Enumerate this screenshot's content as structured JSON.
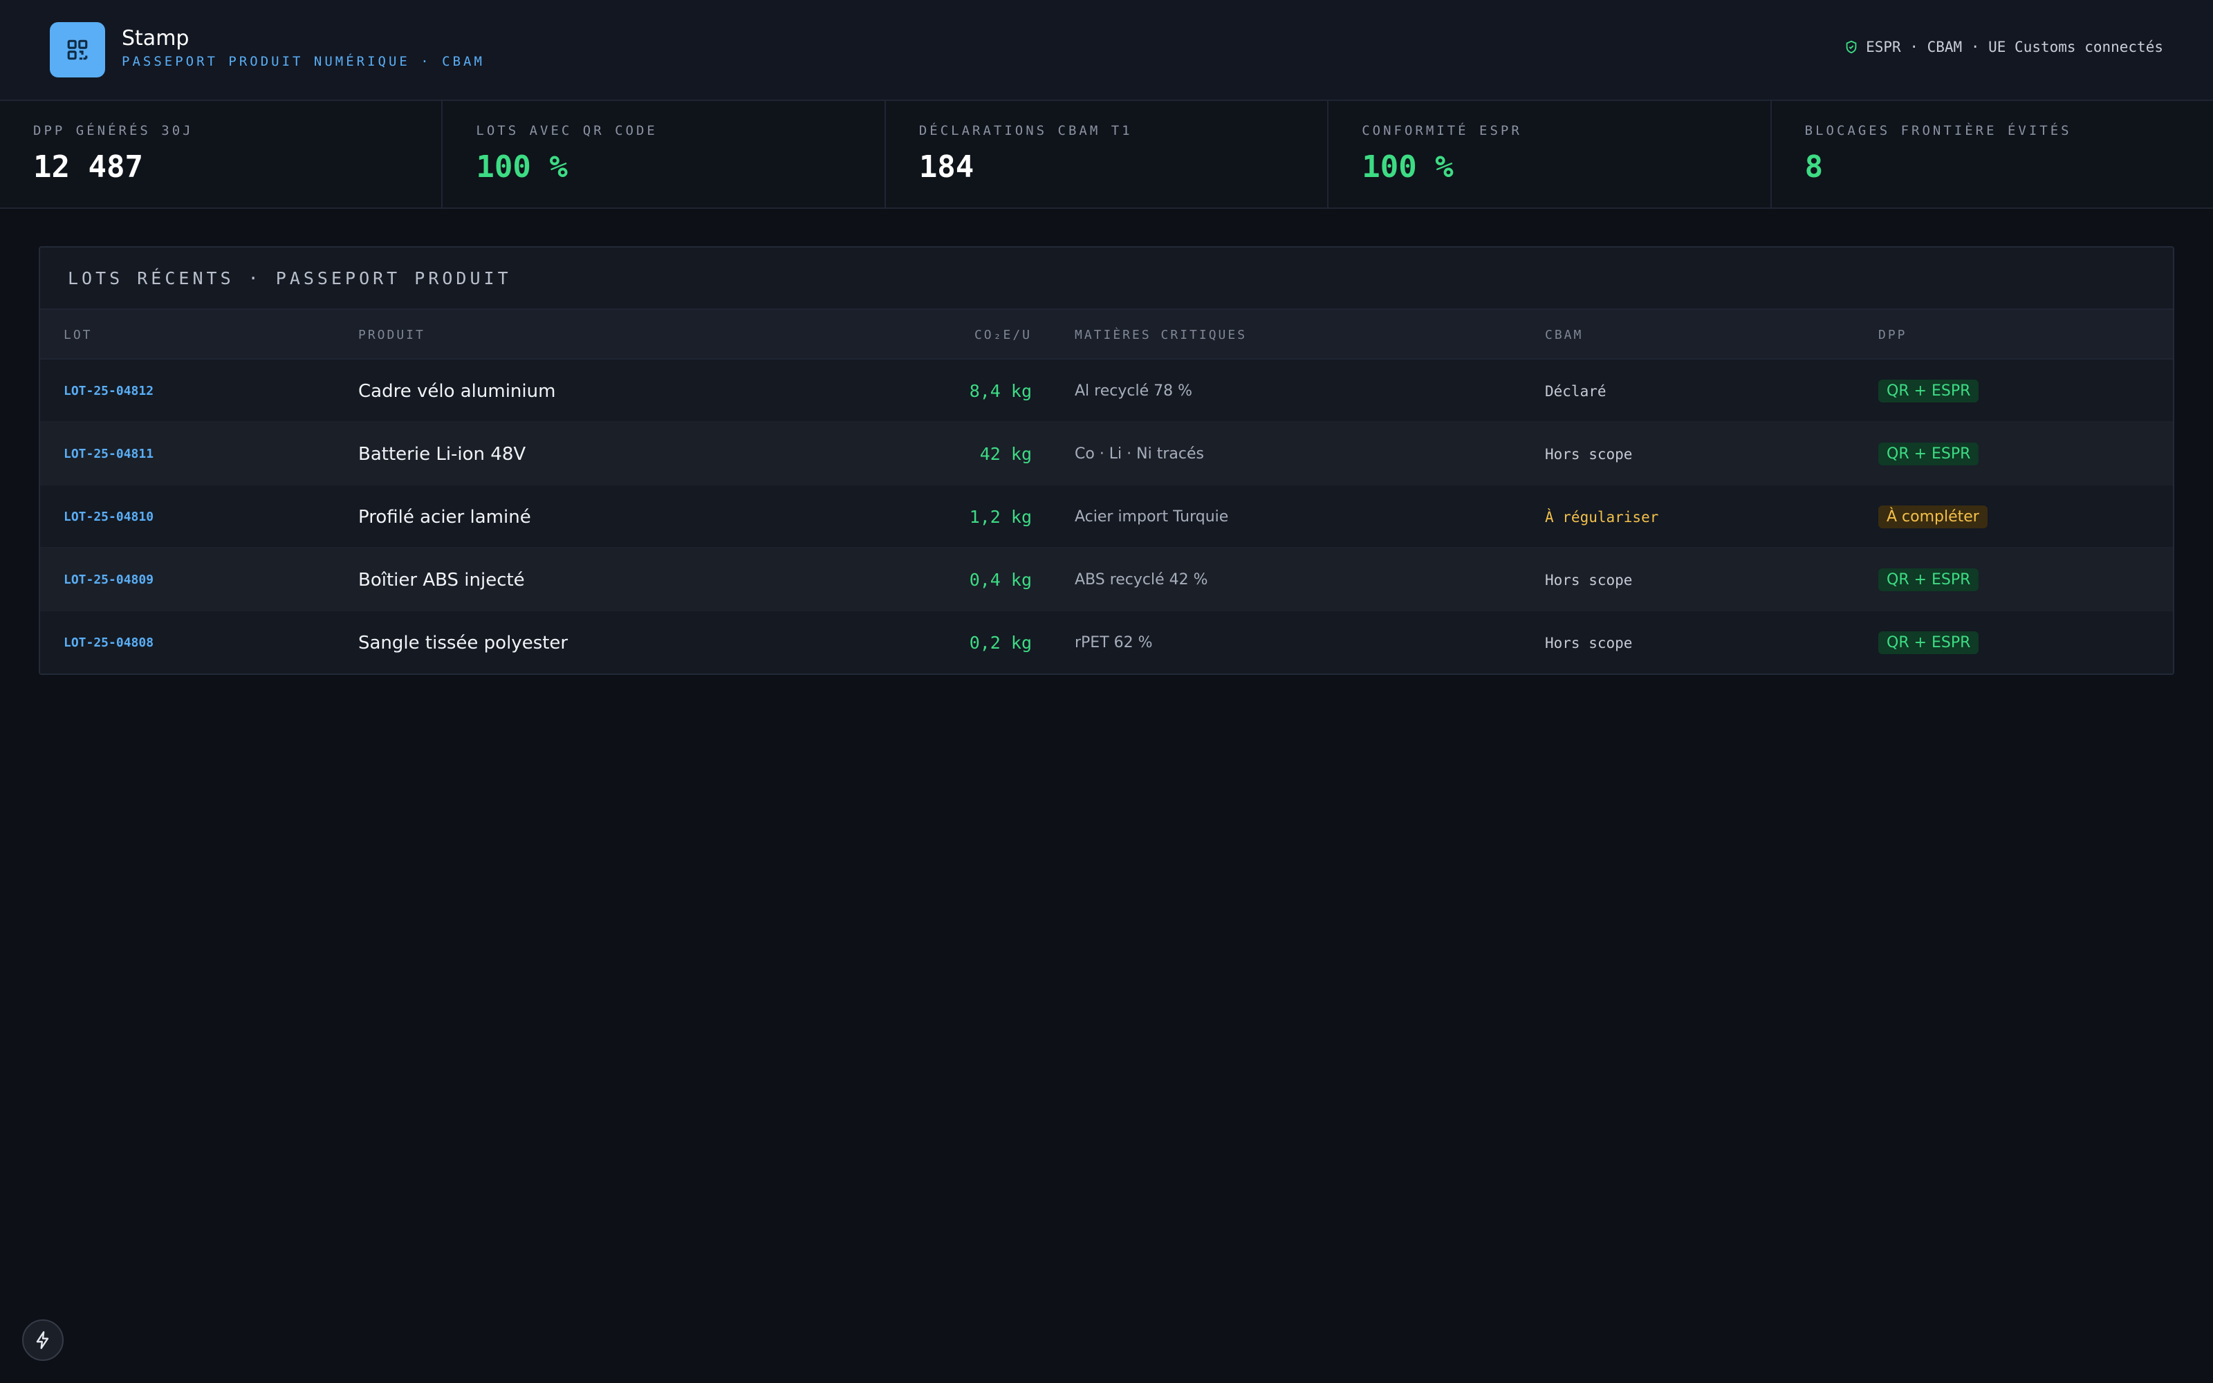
{
  "app": {
    "name": "Stamp",
    "subtitle": "PASSEPORT PRODUIT NUMÉRIQUE · CBAM",
    "status_text": "ESPR · CBAM · UE Customs connectés",
    "logo_icon": "qr-code-icon",
    "status_icon": "shield-check-icon"
  },
  "kpis": [
    {
      "label": "DPP GÉNÉRÉS 30J",
      "value": "12 487"
    },
    {
      "label": "LOTS AVEC QR CODE",
      "value": "100 %"
    },
    {
      "label": "DÉCLARATIONS CBAM T1",
      "value": "184"
    },
    {
      "label": "CONFORMITÉ ESPR",
      "value": "100 %"
    },
    {
      "label": "BLOCAGES FRONTIÈRE ÉVITÉS",
      "value": "8"
    }
  ],
  "panel": {
    "title": "LOTS RÉCENTS · PASSEPORT PRODUIT",
    "columns": [
      "LOT",
      "PRODUIT",
      "CO₂E/U",
      "MATIÈRES CRITIQUES",
      "CBAM",
      "DPP"
    ],
    "rows": [
      {
        "lot": "LOT-25-04812",
        "product": "Cadre vélo aluminium",
        "co2": "8,4 kg",
        "materials": "Al recyclé 78 %",
        "cbam": "Déclaré",
        "dpp": "QR + ESPR"
      },
      {
        "lot": "LOT-25-04811",
        "product": "Batterie Li-ion 48V",
        "co2": "42 kg",
        "materials": "Co · Li · Ni tracés",
        "cbam": "Hors scope",
        "dpp": "QR + ESPR"
      },
      {
        "lot": "LOT-25-04810",
        "product": "Profilé acier laminé",
        "co2": "1,2 kg",
        "materials": "Acier import Turquie",
        "cbam": "À régulariser",
        "dpp": "À compléter"
      },
      {
        "lot": "LOT-25-04809",
        "product": "Boîtier ABS injecté",
        "co2": "0,4 kg",
        "materials": "ABS recyclé 42 %",
        "cbam": "Hors scope",
        "dpp": "QR + ESPR"
      },
      {
        "lot": "LOT-25-04808",
        "product": "Sangle tissée polyester",
        "co2": "0,2 kg",
        "materials": "rPET 62 %",
        "cbam": "Hors scope",
        "dpp": "QR + ESPR"
      }
    ]
  },
  "colors": {
    "accent": "#5aaef5",
    "success": "#3ddc84",
    "warning": "#f3c04a",
    "background": "#0d1016"
  },
  "fab_icon": "lightning-icon"
}
